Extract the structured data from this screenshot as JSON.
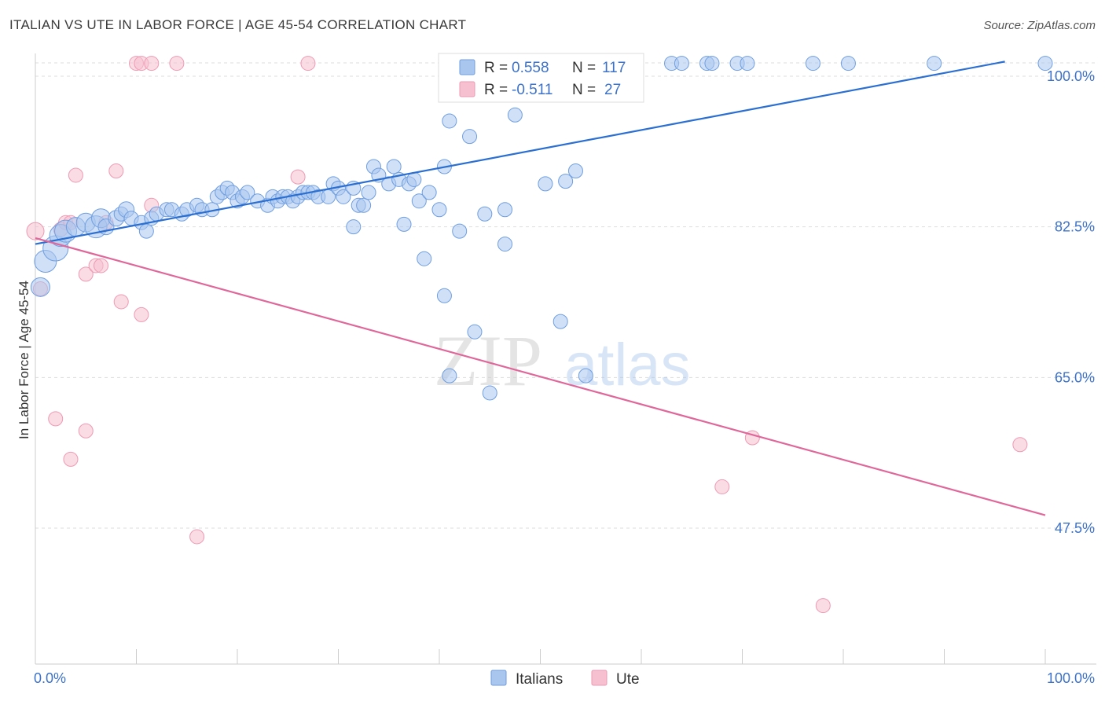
{
  "title": "ITALIAN VS UTE IN LABOR FORCE | AGE 45-54 CORRELATION CHART",
  "source": "Source: ZipAtlas.com",
  "watermark": {
    "zip": "ZIP",
    "atlas": "atlas"
  },
  "colors": {
    "italians_fill": "#a9c6ee",
    "italians_stroke": "#6f9ee0",
    "italians_line": "#2a6fd1",
    "ute_fill": "#f6c0d0",
    "ute_stroke": "#ee9ab4",
    "ute_line": "#e0679a",
    "tick_text": "#3d72c8",
    "grid": "#dddddd"
  },
  "legend": {
    "rows": [
      {
        "r_label": "R =",
        "r_value": "0.558",
        "n_label": "N =",
        "n_value": "117"
      },
      {
        "r_label": "R =",
        "r_value": "-0.511",
        "n_label": "N =",
        "n_value": "27"
      }
    ]
  },
  "bottom_legend": [
    "Italians",
    "Ute"
  ],
  "chart_data": {
    "type": "scatter",
    "title": "ITALIAN VS UTE IN LABOR FORCE | AGE 45-54 CORRELATION CHART",
    "xlabel": "",
    "ylabel": "In Labor Force | Age 45-54",
    "xlim": [
      0,
      100
    ],
    "ylim": [
      32,
      102
    ],
    "x_tick_labels": [
      "0.0%",
      "100.0%"
    ],
    "y_ticks": [
      100,
      82.5,
      65,
      47.5
    ],
    "y_tick_labels": [
      "100.0%",
      "82.5%",
      "65.0%",
      "47.5%"
    ],
    "grid": true,
    "legend_placement": "top-center",
    "series": [
      {
        "name": "Italians",
        "trend": {
          "x": [
            0,
            96
          ],
          "y": [
            80.5,
            101.7
          ]
        },
        "points": [
          [
            1,
            78.5,
            14
          ],
          [
            0.5,
            75.5,
            12
          ],
          [
            2,
            80,
            16
          ],
          [
            2.5,
            81.5,
            14
          ],
          [
            3,
            82,
            14
          ],
          [
            4,
            82.5,
            12
          ],
          [
            5,
            83,
            12
          ],
          [
            6,
            82.5,
            14
          ],
          [
            6.5,
            83.5,
            12
          ],
          [
            7,
            82.5,
            10
          ],
          [
            8,
            83.5,
            10
          ],
          [
            8.5,
            84,
            9
          ],
          [
            9,
            84.5,
            10
          ],
          [
            9.5,
            83.5,
            9
          ],
          [
            10.5,
            83,
            9
          ],
          [
            11,
            82,
            9
          ],
          [
            11.5,
            83.5,
            9
          ],
          [
            12,
            84,
            9
          ],
          [
            13,
            84.5,
            9
          ],
          [
            13.5,
            84.5,
            9
          ],
          [
            14.5,
            84,
            9
          ],
          [
            15,
            84.5,
            9
          ],
          [
            16,
            85,
            9
          ],
          [
            16.5,
            84.5,
            9
          ],
          [
            17.5,
            84.5,
            9
          ],
          [
            18,
            86,
            9
          ],
          [
            18.5,
            86.5,
            9
          ],
          [
            19,
            87,
            9
          ],
          [
            19.5,
            86.5,
            9
          ],
          [
            20,
            85.5,
            9
          ],
          [
            20.5,
            86,
            9
          ],
          [
            21,
            86.5,
            9
          ],
          [
            22,
            85.5,
            9
          ],
          [
            23,
            85,
            9
          ],
          [
            23.5,
            86,
            9
          ],
          [
            24,
            85.5,
            9
          ],
          [
            24.5,
            86,
            9
          ],
          [
            25,
            86,
            9
          ],
          [
            25.5,
            85.5,
            9
          ],
          [
            26,
            86,
            9
          ],
          [
            26.5,
            86.5,
            9
          ],
          [
            27,
            86.5,
            9
          ],
          [
            27.5,
            86.5,
            9
          ],
          [
            28,
            86,
            9
          ],
          [
            29,
            86,
            9
          ],
          [
            29.5,
            87.5,
            9
          ],
          [
            30,
            87,
            9
          ],
          [
            30.5,
            86,
            9
          ],
          [
            31.5,
            87,
            9
          ],
          [
            32,
            85,
            9
          ],
          [
            32.5,
            85,
            9
          ],
          [
            33,
            86.5,
            9
          ],
          [
            33.5,
            89.5,
            9
          ],
          [
            34,
            88.5,
            9
          ],
          [
            35,
            87.5,
            9
          ],
          [
            35.5,
            89.5,
            9
          ],
          [
            36,
            88,
            9
          ],
          [
            37,
            87.5,
            9
          ],
          [
            37.5,
            88,
            9
          ],
          [
            38,
            85.5,
            9
          ],
          [
            39,
            86.5,
            9
          ],
          [
            40,
            84.5,
            9
          ],
          [
            40.5,
            89.5,
            9
          ],
          [
            31.5,
            82.5,
            9
          ],
          [
            36.5,
            82.8,
            9
          ],
          [
            38.5,
            78.8,
            9
          ],
          [
            42,
            82,
            9
          ],
          [
            44.5,
            84,
            9
          ],
          [
            46.5,
            84.5,
            9
          ],
          [
            46.5,
            80.5,
            9
          ],
          [
            41,
            94.8,
            9
          ],
          [
            43,
            93,
            9
          ],
          [
            47.5,
            95.5,
            9
          ],
          [
            40.5,
            74.5,
            9
          ],
          [
            43.5,
            70.3,
            9
          ],
          [
            52,
            71.5,
            9
          ],
          [
            41,
            65.2,
            9
          ],
          [
            45,
            63.2,
            9
          ],
          [
            54.5,
            65.2,
            9
          ],
          [
            50.5,
            87.5,
            9
          ],
          [
            52.5,
            87.8,
            9
          ],
          [
            53.5,
            89,
            9
          ],
          [
            45,
            101.5,
            9
          ],
          [
            54,
            101.5,
            9
          ],
          [
            56,
            101.5,
            9
          ],
          [
            63,
            101.5,
            9
          ],
          [
            64,
            101.5,
            9
          ],
          [
            66.5,
            101.5,
            9
          ],
          [
            67,
            101.5,
            9
          ],
          [
            69.5,
            101.5,
            9
          ],
          [
            70.5,
            101.5,
            9
          ],
          [
            77,
            101.5,
            9
          ],
          [
            80.5,
            101.5,
            9
          ],
          [
            89,
            101.5,
            9
          ],
          [
            100,
            101.5,
            9
          ]
        ]
      },
      {
        "name": "Ute",
        "trend": {
          "x": [
            0,
            100
          ],
          "y": [
            81.2,
            49
          ]
        },
        "points": [
          [
            0,
            82,
            11
          ],
          [
            0.5,
            75.3,
            9
          ],
          [
            2.5,
            82.2,
            9
          ],
          [
            3,
            83,
            9
          ],
          [
            3.5,
            83,
            9
          ],
          [
            4,
            88.5,
            9
          ],
          [
            5,
            77,
            9
          ],
          [
            6,
            78,
            9
          ],
          [
            6.5,
            78,
            9
          ],
          [
            7,
            83,
            9
          ],
          [
            8,
            89,
            9
          ],
          [
            8.5,
            73.8,
            9
          ],
          [
            10.5,
            72.3,
            9
          ],
          [
            11.5,
            85,
            9
          ],
          [
            10,
            101.5,
            9
          ],
          [
            10.5,
            101.5,
            9
          ],
          [
            11.5,
            101.5,
            9
          ],
          [
            14,
            101.5,
            9
          ],
          [
            27,
            101.5,
            9
          ],
          [
            26,
            88.3,
            9
          ],
          [
            2,
            60.2,
            9
          ],
          [
            5,
            58.8,
            9
          ],
          [
            3.5,
            55.5,
            9
          ],
          [
            16,
            46.5,
            9
          ],
          [
            68,
            52.3,
            9
          ],
          [
            71,
            58,
            9
          ],
          [
            97.5,
            57.2,
            9
          ],
          [
            78,
            38.5,
            9
          ]
        ]
      }
    ]
  }
}
